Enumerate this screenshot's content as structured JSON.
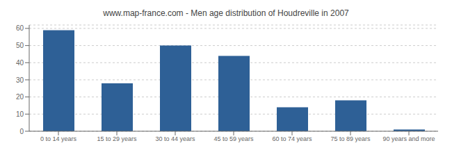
{
  "chart_data": {
    "type": "bar",
    "title": "www.map-france.com - Men age distribution of Houdreville in 2007",
    "categories": [
      "0 to 14 years",
      "15 to 29 years",
      "30 to 44 years",
      "45 to 59 years",
      "60 to 74 years",
      "75 to 89 years",
      "90 years and more"
    ],
    "values": [
      59,
      28,
      50,
      44,
      14,
      18,
      1
    ],
    "color": "#2E6096",
    "ylim": [
      0,
      62
    ],
    "yticks": [
      0,
      10,
      20,
      30,
      40,
      50,
      60
    ],
    "grid": true
  }
}
